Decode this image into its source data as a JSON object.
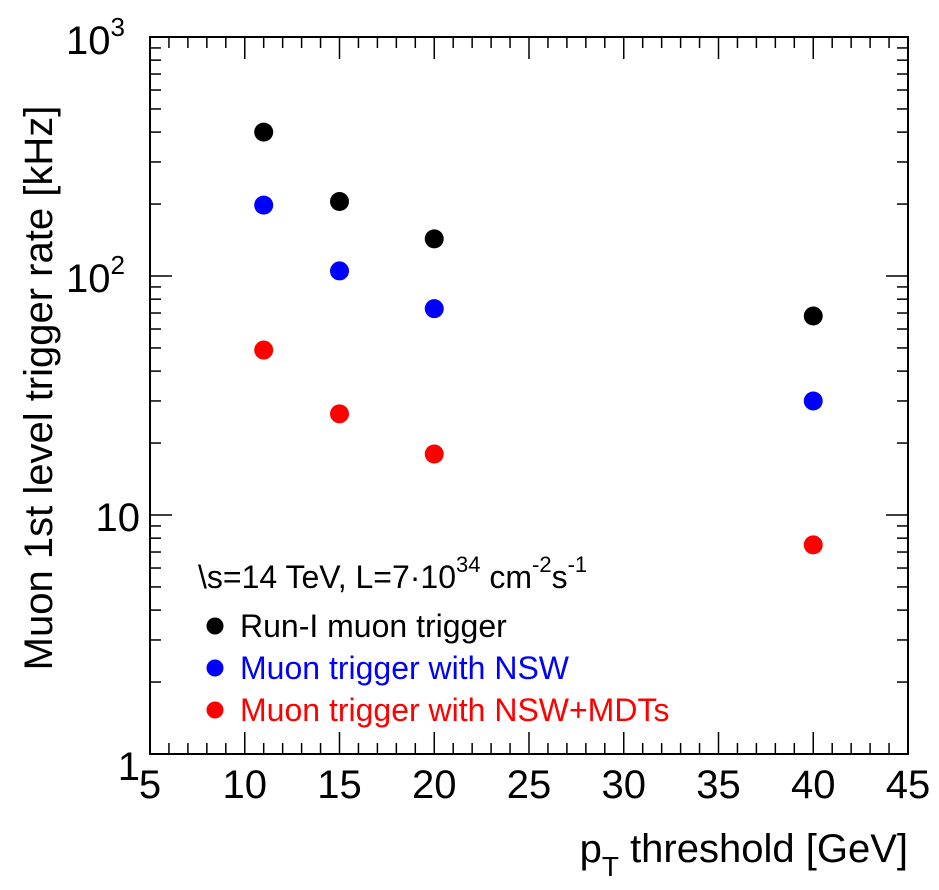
{
  "chart_data": {
    "type": "scatter",
    "xlabel": "p",
    "xlabel_sub": "T",
    "xlabel_rest": " threshold [GeV]",
    "ylabel": "Muon 1st level trigger rate [kHz]",
    "xlim": [
      5,
      45
    ],
    "ylim": [
      1,
      1000
    ],
    "yscale": "log",
    "x_ticks": [
      "5",
      "10",
      "15",
      "20",
      "25",
      "30",
      "35",
      "40",
      "45"
    ],
    "y_tick_labels": {
      "one": "1",
      "ten": "10",
      "hundred_base": "10",
      "hundred_exp": "2",
      "thousand_base": "10",
      "thousand_exp": "3"
    },
    "grid": false,
    "legend_position": "bottom-left",
    "annotation": {
      "root": "\\",
      "s_part": "s=14 TeV, L=7·10",
      "exp34": "34",
      "cm": " cm",
      "exp_m2": "-2",
      "s2": "s",
      "exp_m1": "-1"
    },
    "series": [
      {
        "name": "Run-I muon trigger",
        "color": "#000000",
        "x": [
          11,
          15,
          20,
          40
        ],
        "y": [
          400,
          205,
          143,
          68
        ]
      },
      {
        "name": "Muon trigger with NSW",
        "color": "#0000ff",
        "x": [
          11,
          15,
          20,
          40
        ],
        "y": [
          198,
          105,
          73,
          30
        ]
      },
      {
        "name": "Muon trigger with NSW+MDTs",
        "color": "#ff0000",
        "x": [
          11,
          15,
          20,
          40
        ],
        "y": [
          49,
          26.5,
          18,
          7.5
        ]
      }
    ]
  }
}
